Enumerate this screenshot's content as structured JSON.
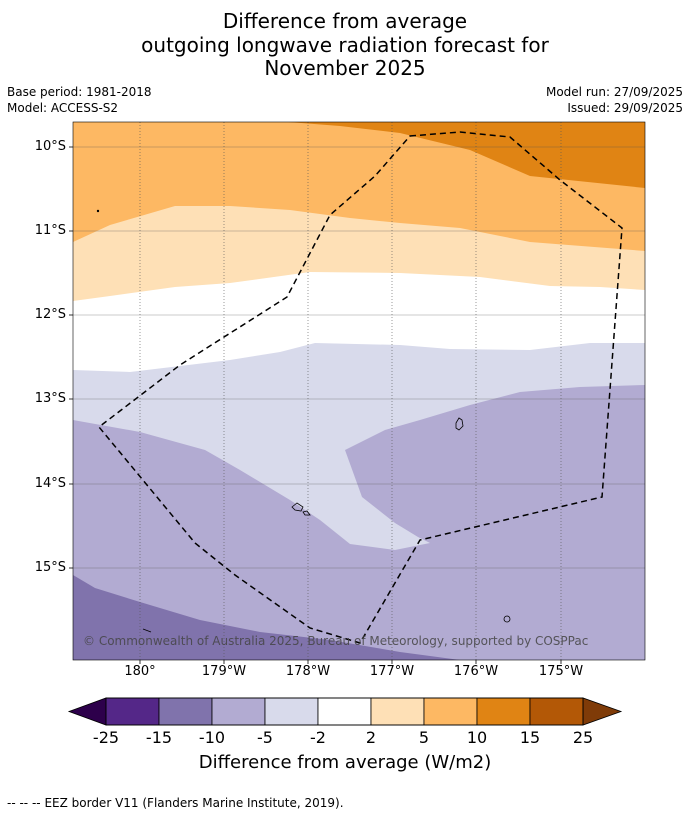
{
  "title": {
    "line1": "Difference from average",
    "line2": "outgoing longwave radiation forecast for",
    "line3": "November 2025"
  },
  "meta": {
    "base_period": "Base period: 1981-2018",
    "model": "Model: ACCESS-S2",
    "model_run": "Model run: 27/09/2025",
    "issued": "Issued: 29/09/2025"
  },
  "map": {
    "lat_labels": [
      "10°S",
      "11°S",
      "12°S",
      "13°S",
      "14°S",
      "15°S"
    ],
    "lon_labels": [
      "180°",
      "179°W",
      "178°W",
      "177°W",
      "176°W",
      "175°W"
    ],
    "copyright": "© Commonwealth of Australia 2025, Bureau of Meteorology, supported by COSPPac",
    "band_colors": {
      "dark_orange": "#E08414",
      "orange": "#FDB863",
      "light_orange": "#FEE0B6",
      "white": "#FFFFFF",
      "light_purple": "#D8DAEB",
      "purple": "#B2ABD2",
      "dark_purple": "#8073AC"
    },
    "eez_color": "#000000"
  },
  "colorbar": {
    "ticks": [
      "-25",
      "-15",
      "-10",
      "-5",
      "-2",
      "2",
      "5",
      "10",
      "15",
      "25"
    ],
    "colors": [
      "#542788",
      "#8073AC",
      "#B2ABD2",
      "#D8DAEB",
      "#FFFFFF",
      "#FEE0B6",
      "#FDB863",
      "#E08414",
      "#B35806"
    ],
    "extend_low_color": "#2D004B",
    "extend_high_color": "#7F3B08",
    "label": "Difference from average (W/m2)"
  },
  "footer": {
    "eez_legend_symbol": "-- -- --",
    "eez_legend": "EEZ border V11 (Flanders Marine Institute, 2019)."
  }
}
